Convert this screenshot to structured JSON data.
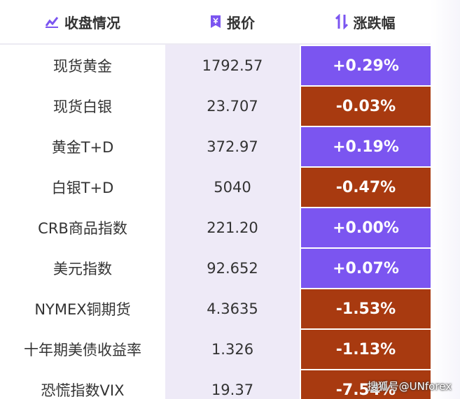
{
  "table": {
    "headers": [
      "收盘情况",
      "报价",
      "涨跌幅"
    ],
    "rows": [
      [
        "现货黄金",
        "1792.57",
        "+0.29%"
      ],
      [
        "现货白银",
        "23.707",
        "-0.03%"
      ],
      [
        "黄金T+D",
        "372.97",
        "+0.19%"
      ],
      [
        "白银T+D",
        "5040",
        "-0.47%"
      ],
      [
        "CRB商品指数",
        "221.20",
        "+0.00%"
      ],
      [
        "美元指数",
        "92.652",
        "+0.07%"
      ],
      [
        "NYMEX铜期货",
        "4.3635",
        "-1.53%"
      ],
      [
        "十年期美债收益率",
        "1.326",
        "-1.13%"
      ],
      [
        "恐慌指数VIX",
        "19.37",
        "-7.54%"
      ]
    ]
  },
  "watermark": "搜狐号@UNforex"
}
